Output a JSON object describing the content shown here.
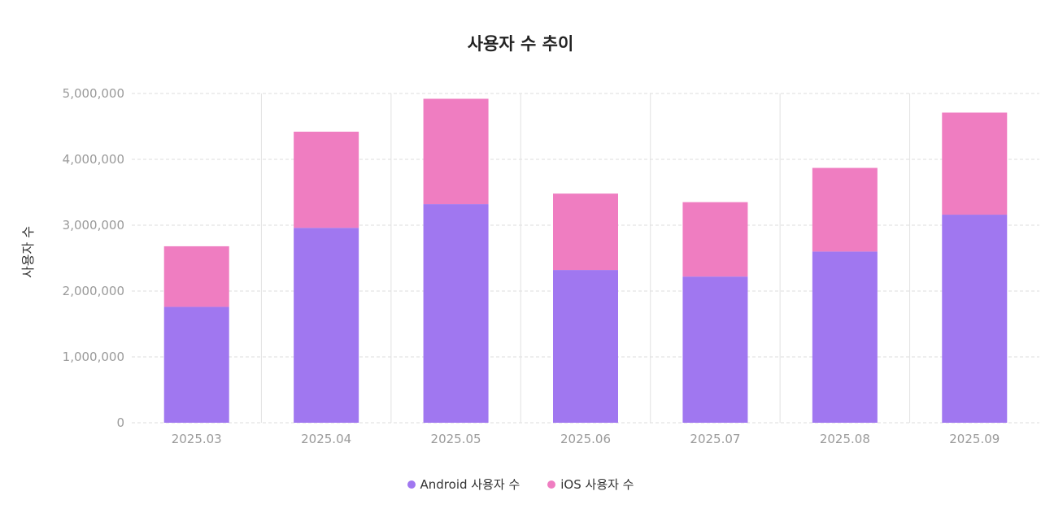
{
  "chart_data": {
    "type": "bar",
    "stacked": true,
    "title": "사용자 수 추이",
    "xlabel": "",
    "ylabel": "사용자 수",
    "categories": [
      "2025.03",
      "2025.04",
      "2025.05",
      "2025.06",
      "2025.07",
      "2025.08",
      "2025.09"
    ],
    "series": [
      {
        "name": "Android 사용자 수",
        "color": "#a077f0",
        "values": [
          1760000,
          2960000,
          3320000,
          2320000,
          2220000,
          2600000,
          3160000
        ]
      },
      {
        "name": "iOS 사용자 수",
        "color": "#ef7dc1",
        "values": [
          920000,
          1460000,
          1600000,
          1160000,
          1130000,
          1270000,
          1550000
        ]
      }
    ],
    "ylim": [
      0,
      5000000
    ],
    "yticks": [
      0,
      1000000,
      2000000,
      3000000,
      4000000,
      5000000
    ],
    "ytick_labels": [
      "0",
      "1,000,000",
      "2,000,000",
      "3,000,000",
      "4,000,000",
      "5,000,000"
    ],
    "grid": true,
    "legend": "bottom-center"
  }
}
